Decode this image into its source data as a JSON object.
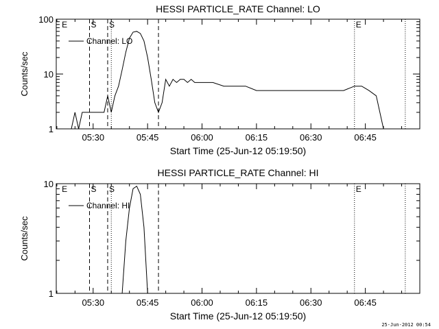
{
  "chart_data": [
    {
      "type": "line",
      "title": "HESSI PARTICLE_RATE Channel: LO",
      "xlabel": "Start Time (25-Jun-12 05:19:50)",
      "ylabel": "Counts/sec",
      "yscale": "log",
      "ylim": [
        1,
        100
      ],
      "xlim": [
        "05:19:50",
        "07:00:00"
      ],
      "x_ticks": [
        "05:30",
        "05:45",
        "06:00",
        "06:15",
        "06:30",
        "06:45"
      ],
      "y_ticks": [
        "1",
        "10",
        "100"
      ],
      "legend": {
        "label": "Channel: LO",
        "placement": "top-left"
      },
      "markers": [
        {
          "time": "05:21",
          "label": "E",
          "style": "none"
        },
        {
          "time": "05:29",
          "label": "S",
          "style": "dashed"
        },
        {
          "time": "05:34",
          "label": "S",
          "style": "dashed"
        },
        {
          "time": "05:35",
          "label": "",
          "style": "dotted"
        },
        {
          "time": "05:48",
          "label": "",
          "style": "dashed"
        },
        {
          "time": "06:42",
          "label": "E",
          "style": "dotted"
        },
        {
          "time": "06:56",
          "label": "",
          "style": "dotted"
        }
      ],
      "series": [
        {
          "name": "Channel: LO",
          "x": [
            "05:24",
            "05:25",
            "05:26",
            "05:27",
            "05:28",
            "05:29",
            "05:30",
            "05:31",
            "05:32",
            "05:33",
            "05:34",
            "05:35",
            "05:36",
            "05:37",
            "05:38",
            "05:39",
            "05:40",
            "05:41",
            "05:42",
            "05:43",
            "05:44",
            "05:45",
            "05:46",
            "05:47",
            "05:48",
            "05:49",
            "05:50",
            "05:51",
            "05:52",
            "05:53",
            "05:54",
            "05:55",
            "05:56",
            "05:57",
            "05:58",
            "06:00",
            "06:03",
            "06:06",
            "06:09",
            "06:12",
            "06:15",
            "06:18",
            "06:21",
            "06:24",
            "06:27",
            "06:30",
            "06:33",
            "06:36",
            "06:39",
            "06:42",
            "06:44",
            "06:46",
            "06:48",
            "06:49",
            "06:50"
          ],
          "y": [
            1,
            2,
            1,
            2,
            2,
            2,
            2,
            2,
            2,
            2,
            4,
            2,
            4,
            6,
            12,
            25,
            45,
            58,
            60,
            55,
            40,
            20,
            8,
            3,
            2,
            3,
            8,
            6,
            8,
            7,
            8,
            8,
            7,
            8,
            7,
            7,
            7,
            6,
            6,
            6,
            5,
            5,
            5,
            5,
            5,
            5,
            5,
            5,
            5,
            6,
            6,
            5,
            4,
            2,
            1
          ]
        }
      ]
    },
    {
      "type": "line",
      "title": "HESSI PARTICLE_RATE Channel: HI",
      "xlabel": "Start Time (25-Jun-12 05:19:50)",
      "ylabel": "Counts/sec",
      "yscale": "log",
      "ylim": [
        1,
        10
      ],
      "xlim": [
        "05:19:50",
        "07:00:00"
      ],
      "x_ticks": [
        "05:30",
        "05:45",
        "06:00",
        "06:15",
        "06:30",
        "06:45"
      ],
      "y_ticks": [
        "1",
        "10"
      ],
      "legend": {
        "label": "Channel: HI",
        "placement": "top-left"
      },
      "markers": [
        {
          "time": "05:21",
          "label": "E",
          "style": "none"
        },
        {
          "time": "05:29",
          "label": "S",
          "style": "dashed"
        },
        {
          "time": "05:34",
          "label": "S",
          "style": "dashed"
        },
        {
          "time": "05:35",
          "label": "",
          "style": "dotted"
        },
        {
          "time": "05:48",
          "label": "",
          "style": "dashed"
        },
        {
          "time": "06:42",
          "label": "E",
          "style": "dotted"
        },
        {
          "time": "06:56",
          "label": "",
          "style": "dotted"
        }
      ],
      "series": [
        {
          "name": "Channel: HI",
          "x": [
            "05:38",
            "05:39",
            "05:40",
            "05:41",
            "05:42",
            "05:43",
            "05:44",
            "05:45"
          ],
          "y": [
            1,
            3,
            6,
            9,
            9.5,
            8,
            4,
            1
          ]
        }
      ]
    }
  ],
  "footer": {
    "timestamp": "25-Jun-2012 00:54"
  }
}
